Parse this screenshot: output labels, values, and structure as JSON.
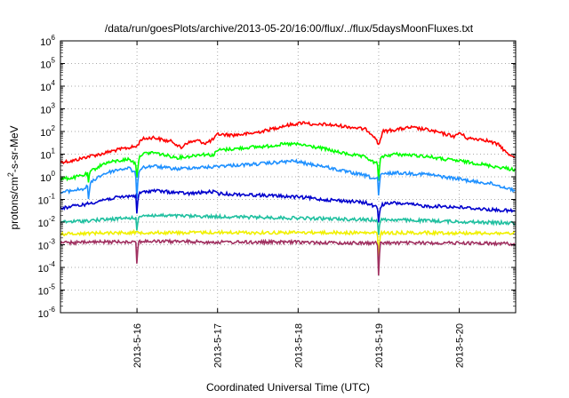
{
  "chart_data": {
    "type": "line",
    "title": "/data/run/goesPlots/archive/2013-05-20/16:00/flux/../flux/5daysMoonFluxes.txt",
    "xlabel": "Coordinated Universal Time (UTC)",
    "ylabel_prefix": "protons/cm",
    "ylabel_sup": "2",
    "ylabel_suffix": "-s-sr-MeV",
    "y_scale": "log",
    "ylim_exponents": [
      -6,
      6
    ],
    "y_ticks": [
      {
        "base": "10",
        "exp": "6",
        "value": 6
      },
      {
        "base": "10",
        "exp": "5",
        "value": 5
      },
      {
        "base": "10",
        "exp": "4",
        "value": 4
      },
      {
        "base": "10",
        "exp": "3",
        "value": 3
      },
      {
        "base": "10",
        "exp": "2",
        "value": 2
      },
      {
        "base": "10",
        "exp": "1",
        "value": 1
      },
      {
        "base": "10",
        "exp": "0",
        "value": 0
      },
      {
        "base": "10",
        "exp": "-1",
        "value": -1
      },
      {
        "base": "10",
        "exp": "-2",
        "value": -2
      },
      {
        "base": "10",
        "exp": "-3",
        "value": -3
      },
      {
        "base": "10",
        "exp": "-4",
        "value": -4
      },
      {
        "base": "10",
        "exp": "-5",
        "value": -5
      },
      {
        "base": "10",
        "exp": "-6",
        "value": -6
      }
    ],
    "xlim_days": [
      15.05,
      20.7
    ],
    "x_ticks": [
      {
        "label": "2013-5-16",
        "day": 16
      },
      {
        "label": "2013-5-17",
        "day": 17
      },
      {
        "label": "2013-5-18",
        "day": 18
      },
      {
        "label": "2013-5-19",
        "day": 19
      },
      {
        "label": "2013-5-20",
        "day": 20
      }
    ],
    "grid": true,
    "series": [
      {
        "color": "#ff0000",
        "points": [
          [
            15.05,
            4.5
          ],
          [
            15.2,
            5
          ],
          [
            15.4,
            8
          ],
          [
            15.55,
            10
          ],
          [
            15.7,
            14
          ],
          [
            15.85,
            18
          ],
          [
            16.0,
            22
          ],
          [
            16.05,
            45
          ],
          [
            16.2,
            55
          ],
          [
            16.35,
            40
          ],
          [
            16.45,
            35
          ],
          [
            16.55,
            18
          ],
          [
            16.6,
            30
          ],
          [
            16.75,
            40
          ],
          [
            16.85,
            30
          ],
          [
            16.95,
            45
          ],
          [
            17.0,
            75
          ],
          [
            17.2,
            70
          ],
          [
            17.4,
            80
          ],
          [
            17.6,
            110
          ],
          [
            17.8,
            170
          ],
          [
            17.95,
            210
          ],
          [
            18.1,
            260
          ],
          [
            18.2,
            180
          ],
          [
            18.3,
            210
          ],
          [
            18.5,
            180
          ],
          [
            18.7,
            150
          ],
          [
            18.85,
            120
          ],
          [
            18.95,
            60
          ],
          [
            19.0,
            25
          ],
          [
            19.05,
            100
          ],
          [
            19.2,
            120
          ],
          [
            19.4,
            150
          ],
          [
            19.6,
            120
          ],
          [
            19.8,
            80
          ],
          [
            19.95,
            60
          ],
          [
            20.0,
            90
          ],
          [
            20.1,
            50
          ],
          [
            20.3,
            45
          ],
          [
            20.5,
            25
          ],
          [
            20.6,
            10
          ],
          [
            20.7,
            8
          ]
        ],
        "dips": []
      },
      {
        "color": "#00ff00",
        "points": [
          [
            15.05,
            0.8
          ],
          [
            15.2,
            0.9
          ],
          [
            15.35,
            1.2
          ],
          [
            15.5,
            2.5
          ],
          [
            15.6,
            4
          ],
          [
            15.75,
            5
          ],
          [
            15.9,
            6
          ],
          [
            16.0,
            3.5
          ],
          [
            16.05,
            10
          ],
          [
            16.2,
            12
          ],
          [
            16.35,
            9
          ],
          [
            16.5,
            7
          ],
          [
            16.65,
            8
          ],
          [
            16.8,
            10
          ],
          [
            16.95,
            9
          ],
          [
            17.0,
            15
          ],
          [
            17.2,
            17
          ],
          [
            17.4,
            20
          ],
          [
            17.6,
            22
          ],
          [
            17.8,
            27
          ],
          [
            17.95,
            28
          ],
          [
            18.1,
            24
          ],
          [
            18.3,
            18
          ],
          [
            18.5,
            12
          ],
          [
            18.7,
            9
          ],
          [
            18.85,
            7
          ],
          [
            18.95,
            4
          ],
          [
            19.0,
            4
          ],
          [
            19.05,
            8
          ],
          [
            19.2,
            10
          ],
          [
            19.4,
            9
          ],
          [
            19.6,
            8
          ],
          [
            19.8,
            6
          ],
          [
            20.0,
            5
          ],
          [
            20.2,
            4
          ],
          [
            20.4,
            3
          ],
          [
            20.55,
            2.5
          ],
          [
            20.7,
            2
          ]
        ],
        "dips": [
          [
            15.4,
            0.5
          ],
          [
            16.0,
            0.8
          ],
          [
            19.0,
            0.6
          ]
        ]
      },
      {
        "color": "#1e90ff",
        "points": [
          [
            15.05,
            0.2
          ],
          [
            15.2,
            0.25
          ],
          [
            15.35,
            0.3
          ],
          [
            15.5,
            0.9
          ],
          [
            15.6,
            1.4
          ],
          [
            15.75,
            2
          ],
          [
            15.9,
            2.5
          ],
          [
            16.0,
            1.2
          ],
          [
            16.05,
            2.5
          ],
          [
            16.2,
            3
          ],
          [
            16.35,
            2.5
          ],
          [
            16.5,
            2.2
          ],
          [
            16.65,
            2.5
          ],
          [
            16.8,
            2.6
          ],
          [
            16.95,
            2.7
          ],
          [
            17.0,
            3
          ],
          [
            17.2,
            3.2
          ],
          [
            17.4,
            3.5
          ],
          [
            17.6,
            3.9
          ],
          [
            17.8,
            4.5
          ],
          [
            17.95,
            5
          ],
          [
            18.1,
            3.8
          ],
          [
            18.3,
            3
          ],
          [
            18.5,
            2
          ],
          [
            18.7,
            1.4
          ],
          [
            18.85,
            1.1
          ],
          [
            18.95,
            0.8
          ],
          [
            19.0,
            1.0
          ],
          [
            19.05,
            1.3
          ],
          [
            19.2,
            1.5
          ],
          [
            19.4,
            1.4
          ],
          [
            19.6,
            1.3
          ],
          [
            19.8,
            1
          ],
          [
            20.0,
            0.8
          ],
          [
            20.2,
            0.6
          ],
          [
            20.4,
            0.5
          ],
          [
            20.55,
            0.35
          ],
          [
            20.7,
            0.25
          ]
        ],
        "dips": [
          [
            15.4,
            0.08
          ],
          [
            16.0,
            0.07
          ],
          [
            19.0,
            0.1
          ]
        ]
      },
      {
        "color": "#0000cd",
        "points": [
          [
            15.05,
            0.04
          ],
          [
            15.2,
            0.05
          ],
          [
            15.35,
            0.06
          ],
          [
            15.5,
            0.08
          ],
          [
            15.6,
            0.1
          ],
          [
            15.75,
            0.12
          ],
          [
            15.9,
            0.14
          ],
          [
            16.0,
            0.15
          ],
          [
            16.05,
            0.2
          ],
          [
            16.2,
            0.25
          ],
          [
            16.35,
            0.22
          ],
          [
            16.5,
            0.2
          ],
          [
            16.65,
            0.18
          ],
          [
            16.8,
            0.2
          ],
          [
            16.95,
            0.22
          ],
          [
            17.0,
            0.18
          ],
          [
            17.2,
            0.17
          ],
          [
            17.4,
            0.16
          ],
          [
            17.6,
            0.15
          ],
          [
            17.8,
            0.14
          ],
          [
            17.95,
            0.13
          ],
          [
            18.1,
            0.12
          ],
          [
            18.3,
            0.1
          ],
          [
            18.5,
            0.09
          ],
          [
            18.7,
            0.08
          ],
          [
            18.85,
            0.07
          ],
          [
            18.95,
            0.05
          ],
          [
            19.0,
            0.04
          ],
          [
            19.05,
            0.06
          ],
          [
            19.2,
            0.07
          ],
          [
            19.4,
            0.06
          ],
          [
            19.6,
            0.05
          ],
          [
            19.8,
            0.05
          ],
          [
            20.0,
            0.045
          ],
          [
            20.2,
            0.04
          ],
          [
            20.4,
            0.035
          ],
          [
            20.55,
            0.033
          ],
          [
            20.7,
            0.03
          ]
        ],
        "dips": [
          [
            16.0,
            0.02
          ],
          [
            19.0,
            0.008
          ]
        ]
      },
      {
        "color": "#20c0a0",
        "points": [
          [
            15.05,
            0.01
          ],
          [
            15.3,
            0.011
          ],
          [
            15.6,
            0.013
          ],
          [
            15.9,
            0.015
          ],
          [
            16.0,
            0.016
          ],
          [
            16.05,
            0.02
          ],
          [
            16.4,
            0.019
          ],
          [
            16.8,
            0.018
          ],
          [
            17.2,
            0.017
          ],
          [
            17.6,
            0.016
          ],
          [
            18.0,
            0.015
          ],
          [
            18.4,
            0.014
          ],
          [
            18.8,
            0.013
          ],
          [
            19.0,
            0.012
          ],
          [
            19.05,
            0.013
          ],
          [
            19.4,
            0.012
          ],
          [
            19.8,
            0.011
          ],
          [
            20.2,
            0.01
          ],
          [
            20.7,
            0.009
          ]
        ],
        "dips": [
          [
            16.0,
            0.003
          ],
          [
            19.0,
            0.002
          ]
        ]
      },
      {
        "color": "#f0f000",
        "points": [
          [
            15.05,
            0.003
          ],
          [
            15.5,
            0.0033
          ],
          [
            16.0,
            0.0035
          ],
          [
            16.5,
            0.0034
          ],
          [
            17.0,
            0.0035
          ],
          [
            17.5,
            0.0034
          ],
          [
            18.0,
            0.0035
          ],
          [
            18.5,
            0.0034
          ],
          [
            19.0,
            0.0033
          ],
          [
            19.5,
            0.0034
          ],
          [
            20.0,
            0.0033
          ],
          [
            20.7,
            0.0032
          ]
        ],
        "dips": [
          [
            19.0,
            0.0001
          ]
        ]
      },
      {
        "color": "#a03060",
        "points": [
          [
            15.05,
            0.0012
          ],
          [
            15.5,
            0.0013
          ],
          [
            16.0,
            0.0014
          ],
          [
            16.5,
            0.0014
          ],
          [
            17.0,
            0.0013
          ],
          [
            17.5,
            0.0013
          ],
          [
            18.0,
            0.0013
          ],
          [
            18.5,
            0.0012
          ],
          [
            19.0,
            0.0012
          ],
          [
            19.5,
            0.0012
          ],
          [
            20.0,
            0.0012
          ],
          [
            20.7,
            0.0011
          ]
        ],
        "dips": [
          [
            16.0,
            0.00012
          ],
          [
            19.0,
            3e-05
          ]
        ]
      }
    ]
  }
}
